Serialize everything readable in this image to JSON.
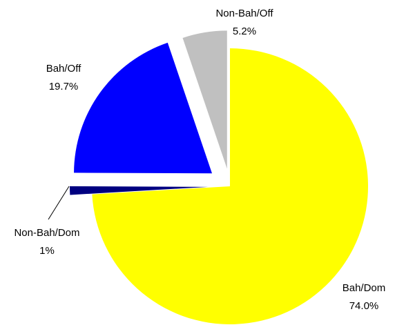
{
  "chart_data": {
    "type": "pie",
    "categories": [
      "Bah/Dom",
      "Non-Bah/Dom",
      "Bah/Off",
      "Non-Bah/Off"
    ],
    "values": [
      74.0,
      1,
      19.7,
      5.2
    ],
    "value_labels": [
      "74.0%",
      "1%",
      "19.7%",
      "5.2%"
    ],
    "colors": [
      "#ffff00",
      "#000080",
      "#0000ff",
      "#c0c0c0"
    ]
  }
}
